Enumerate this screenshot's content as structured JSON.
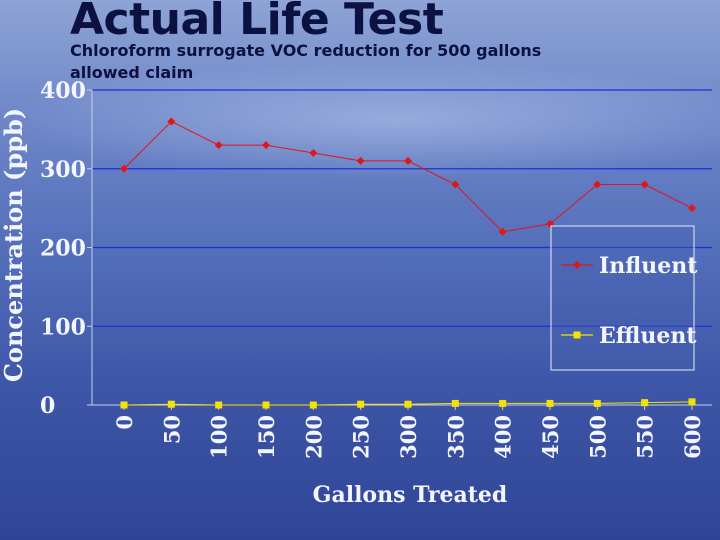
{
  "slide": {
    "title": "Actual Life Test",
    "subtitle": "Chloroform surrogate VOC reduction for 500 gallons allowed claim"
  },
  "chart_data": {
    "type": "line",
    "title": "",
    "xlabel": "Gallons Treated",
    "ylabel": "Concentration (ppb)",
    "x": [
      0,
      50,
      100,
      150,
      200,
      250,
      300,
      350,
      400,
      450,
      500,
      550,
      600
    ],
    "ylim": [
      0,
      400
    ],
    "yticks": [
      0,
      100,
      200,
      300,
      400
    ],
    "grid": true,
    "legend_position": "right",
    "series": [
      {
        "name": "Influent",
        "values": [
          300,
          360,
          330,
          330,
          320,
          310,
          310,
          280,
          220,
          230,
          280,
          280,
          250
        ],
        "color": "#e0161b",
        "marker": "diamond"
      },
      {
        "name": "Effluent",
        "values": [
          0,
          1,
          0,
          0,
          0,
          1,
          1,
          2,
          2,
          2,
          2,
          3,
          4
        ],
        "color": "#f2e400",
        "marker": "square"
      }
    ],
    "colors": {
      "grid": "#1b2fd8",
      "axis": "#c8cfe6",
      "text": "#f4f6ff"
    }
  }
}
